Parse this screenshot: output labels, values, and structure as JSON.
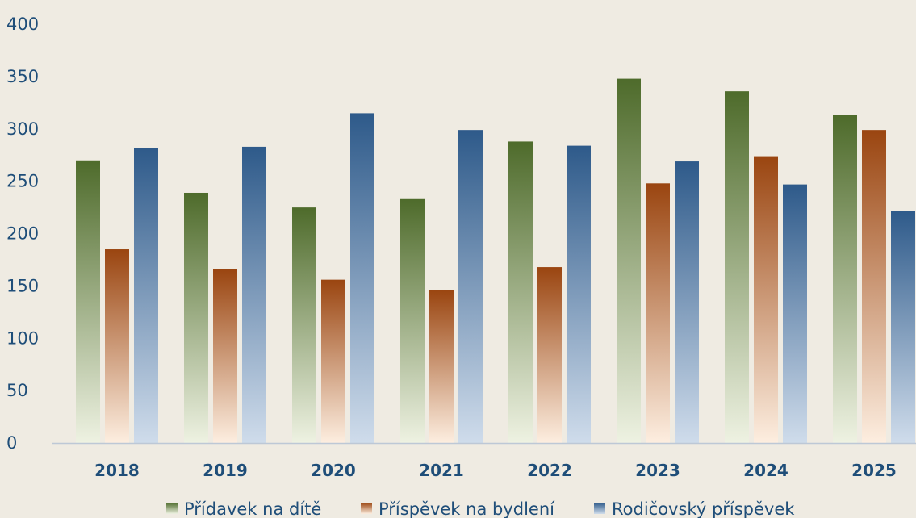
{
  "chart_data": {
    "type": "bar",
    "title": "",
    "xlabel": "",
    "ylabel": "",
    "ylim": [
      0,
      400
    ],
    "yticks": [
      0,
      50,
      100,
      150,
      200,
      250,
      300,
      350,
      400
    ],
    "grid": false,
    "legend_position": "bottom",
    "categories": [
      "2018",
      "2019",
      "2020",
      "2021",
      "2022",
      "2023",
      "2024",
      "2025"
    ],
    "series": [
      {
        "name": "Přídavek na dítě",
        "color_top": "#4e6b2b",
        "color_bottom": "#eef2e2",
        "values": [
          270,
          239,
          225,
          233,
          288,
          348,
          336,
          313
        ]
      },
      {
        "name": "Příspěvek na bydlení",
        "color_top": "#9a4510",
        "color_bottom": "#fdeee0",
        "values": [
          185,
          166,
          156,
          146,
          168,
          248,
          274,
          299
        ]
      },
      {
        "name": "Rodičovský příspěvek",
        "color_top": "#2e5a8a",
        "color_bottom": "#cfdceb",
        "values": [
          282,
          283,
          315,
          299,
          284,
          269,
          247,
          222
        ]
      }
    ]
  }
}
